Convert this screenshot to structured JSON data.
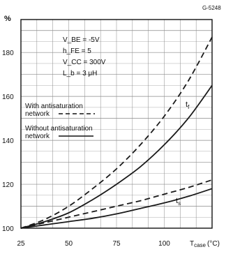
{
  "figure_code": "G-5248",
  "ylabel": "%",
  "xlabel": "T",
  "xlabel_sub": "case",
  "xlabel_unit": "(°C)",
  "params": [
    "V_BE = -5V",
    "h_FE = 5",
    "V_CC = 300V",
    "L_b = 3 μH"
  ],
  "legend": [
    {
      "label_line1": "With antisaturation",
      "label_line2": "network",
      "style": "dashed"
    },
    {
      "label_line1": "Without antisaturation",
      "label_line2": "network",
      "style": "solid"
    }
  ],
  "chart_data": {
    "type": "line",
    "x_ticks": [
      25,
      50,
      75,
      100
    ],
    "x_tick_labels": [
      "25",
      "50",
      "75",
      "100"
    ],
    "y_ticks": [
      100,
      120,
      140,
      160,
      180
    ],
    "y_tick_labels": [
      "100",
      "120",
      "140",
      "160",
      "180"
    ],
    "xlim": [
      25,
      125
    ],
    "ylim": [
      100,
      195
    ],
    "grid": true,
    "curve_labels": [
      {
        "text": "t",
        "sub": "f"
      },
      {
        "text": "t",
        "sub": "s"
      }
    ],
    "series": [
      {
        "curve": "tf",
        "style": "dashed",
        "x": [
          25,
          37.5,
          50,
          62.5,
          75,
          87.5,
          100,
          112.5,
          125
        ],
        "y": [
          100,
          104,
          110,
          118,
          127,
          138,
          151,
          167,
          187
        ]
      },
      {
        "curve": "tf",
        "style": "solid",
        "x": [
          25,
          37.5,
          50,
          62.5,
          75,
          87.5,
          100,
          112.5,
          125
        ],
        "y": [
          100,
          103,
          107,
          113,
          120,
          128,
          138,
          150,
          165
        ]
      },
      {
        "curve": "ts",
        "style": "dashed",
        "x": [
          25,
          37.5,
          50,
          62.5,
          75,
          87.5,
          100,
          112.5,
          125
        ],
        "y": [
          100,
          102.5,
          105,
          107.5,
          110,
          112.5,
          115.5,
          118.5,
          122
        ]
      },
      {
        "curve": "ts",
        "style": "solid",
        "x": [
          25,
          37.5,
          50,
          62.5,
          75,
          87.5,
          100,
          112.5,
          125
        ],
        "y": [
          100,
          101.5,
          103,
          104.5,
          106.5,
          109,
          111.5,
          114.5,
          118
        ]
      }
    ]
  }
}
